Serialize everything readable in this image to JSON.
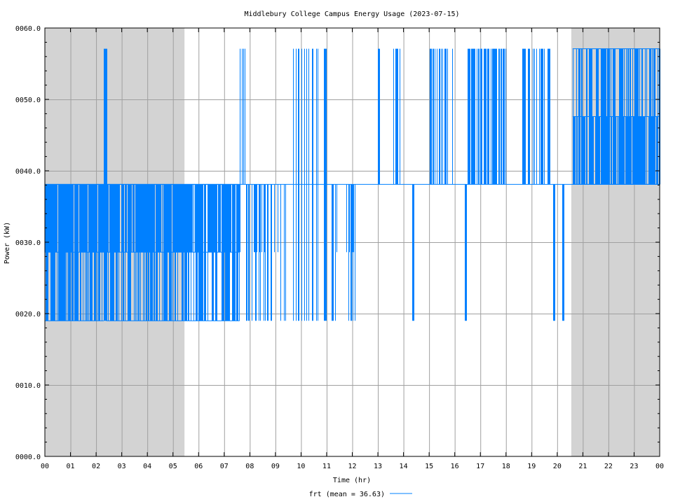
{
  "chart_data": {
    "type": "line",
    "title": "Middlebury College Campus Energy Usage (2023-07-15)",
    "xlabel": "Time (hr)",
    "ylabel": "Power (kW)",
    "xlim": [
      0,
      24
    ],
    "ylim": [
      0,
      60
    ],
    "x_ticks": [
      "00",
      "01",
      "02",
      "03",
      "04",
      "05",
      "06",
      "07",
      "08",
      "09",
      "10",
      "11",
      "12",
      "13",
      "14",
      "15",
      "16",
      "17",
      "18",
      "19",
      "20",
      "21",
      "22",
      "23",
      "00"
    ],
    "y_ticks": [
      "0000.0",
      "0010.0",
      "0020.0",
      "0030.0",
      "0040.0",
      "0050.0",
      "0060.0"
    ],
    "grid": true,
    "night_shading": [
      [
        0,
        5.45
      ],
      [
        20.55,
        24
      ]
    ],
    "legend": {
      "label": "frt (mean = 36.63)",
      "placement": "bottom-center"
    },
    "series": [
      {
        "name": "frt (mean = 36.63)",
        "color": "#0080ff",
        "baseline": 38.1,
        "levels": [
          19.0,
          28.6,
          38.1,
          47.6,
          57.1
        ],
        "segments": [
          {
            "from": 0.0,
            "to": 2.3,
            "low": 19.0,
            "high": 38.1,
            "density": 0.95,
            "mid": 28.6
          },
          {
            "from": 2.3,
            "to": 2.4,
            "low": 19.0,
            "high": 57.1,
            "density": 0.9
          },
          {
            "from": 2.4,
            "to": 7.6,
            "low": 19.0,
            "high": 38.1,
            "density": 0.9,
            "mid": 28.6
          },
          {
            "from": 7.6,
            "to": 7.8,
            "low": 38.1,
            "high": 57.1,
            "density": 0.8
          },
          {
            "from": 7.8,
            "to": 9.4,
            "low": 19.0,
            "high": 38.1,
            "density": 0.5,
            "mid": 28.6
          },
          {
            "from": 9.7,
            "to": 11.0,
            "low": 19.0,
            "high": 57.1,
            "density": 0.35
          },
          {
            "from": 11.2,
            "to": 12.1,
            "low": 19.0,
            "high": 38.1,
            "density": 0.4,
            "mid": 28.6
          },
          {
            "from": 13.0,
            "to": 13.05,
            "low": 38.1,
            "high": 57.1,
            "density": 1.0
          },
          {
            "from": 13.6,
            "to": 13.95,
            "low": 38.1,
            "high": 57.1,
            "density": 0.5
          },
          {
            "from": 14.35,
            "to": 14.4,
            "low": 19.0,
            "high": 38.1,
            "density": 1.0
          },
          {
            "from": 15.0,
            "to": 15.9,
            "low": 38.1,
            "high": 57.1,
            "density": 0.55
          },
          {
            "from": 16.4,
            "to": 16.45,
            "low": 19.0,
            "high": 38.1,
            "density": 1.0
          },
          {
            "from": 16.5,
            "to": 18.0,
            "low": 38.1,
            "high": 57.1,
            "density": 0.6
          },
          {
            "from": 18.6,
            "to": 19.7,
            "low": 38.1,
            "high": 57.1,
            "density": 0.55
          },
          {
            "from": 19.85,
            "to": 19.9,
            "low": 19.0,
            "high": 38.1,
            "density": 1.0
          },
          {
            "from": 20.2,
            "to": 20.25,
            "low": 19.0,
            "high": 38.1,
            "density": 1.0
          },
          {
            "from": 20.6,
            "to": 24.0,
            "low": 38.1,
            "high": 57.1,
            "density": 0.85,
            "mid": 47.6
          }
        ]
      }
    ]
  }
}
